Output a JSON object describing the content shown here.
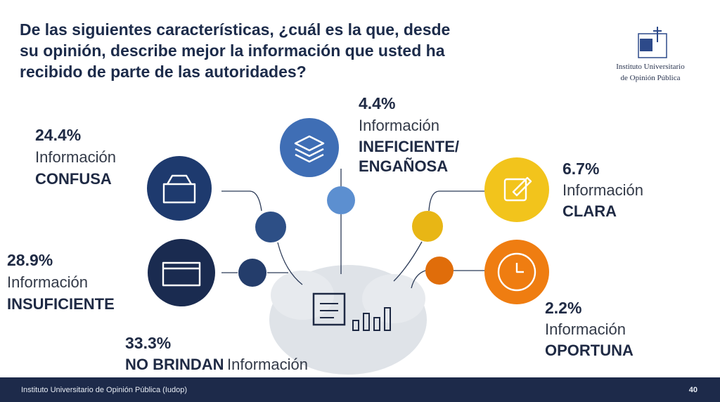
{
  "title": [
    "De las siguientes características, ¿cuál es la que, desde",
    "su opinión, describe mejor la información que usted ha",
    "recibido de parte de las autoridades?"
  ],
  "logo": [
    "Instituto Universitario",
    "de Opinión Pública"
  ],
  "items": [
    {
      "percent": "24.4%",
      "label": "Información",
      "emphasis": [
        "CONFUSA"
      ]
    },
    {
      "percent": "28.9%",
      "label": "Información",
      "emphasis": [
        "INSUFICIENTE"
      ]
    },
    {
      "percent": "33.3%",
      "label": "Información",
      "emphasis": [
        "NO BRINDAN"
      ]
    },
    {
      "percent": "4.4%",
      "label": "Información",
      "emphasis": [
        "INEFICIENTE/",
        "ENGAÑOSA"
      ]
    },
    {
      "percent": "6.7%",
      "label": "Información",
      "emphasis": [
        "CLARA"
      ]
    },
    {
      "percent": "2.2%",
      "label": "Información",
      "emphasis": [
        "OPORTUNA"
      ]
    }
  ],
  "footer": {
    "text": "Instituto Universitario de Opinión Pública (Iudop)",
    "page": "40"
  }
}
